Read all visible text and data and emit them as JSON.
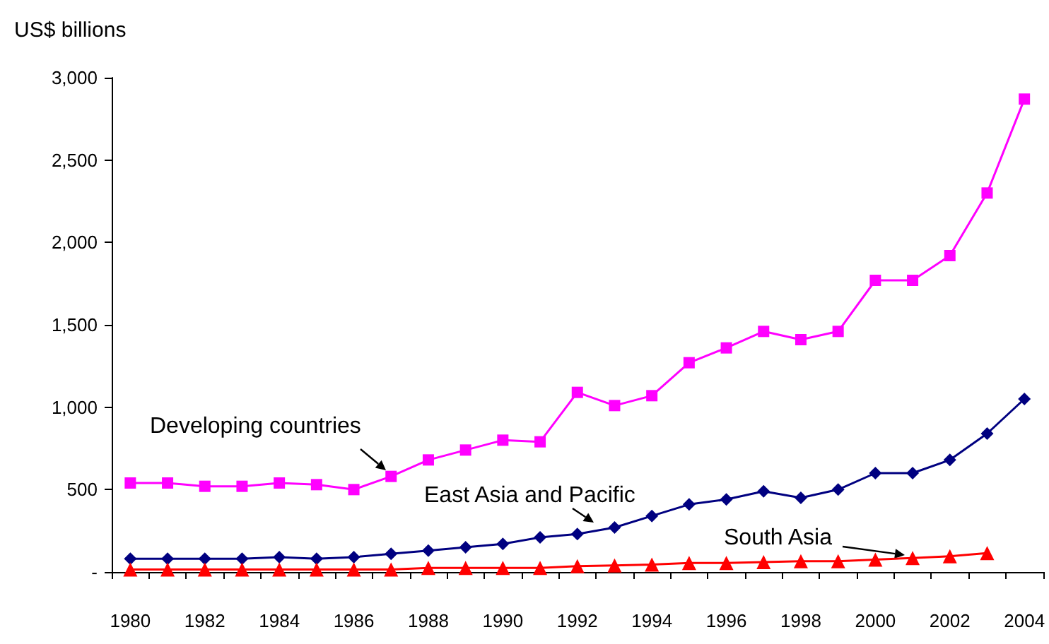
{
  "chart_data": {
    "type": "line",
    "ylabel": "US$ billions",
    "categories": [
      "1980",
      null,
      "1982",
      null,
      "1984",
      null,
      "1986",
      null,
      "1988",
      null,
      "1990",
      null,
      "1992",
      null,
      "1994",
      null,
      "1996",
      null,
      "1998",
      null,
      "2000",
      null,
      "2002",
      null,
      "2004"
    ],
    "series": [
      {
        "name": "Developing countries",
        "color": "#ff00ff",
        "marker": "square",
        "values": [
          540,
          540,
          520,
          520,
          540,
          530,
          500,
          580,
          680,
          740,
          800,
          790,
          1090,
          1010,
          1070,
          1270,
          1360,
          1460,
          1410,
          1460,
          1770,
          1770,
          1920,
          2300,
          2870
        ]
      },
      {
        "name": "East Asia and Pacific",
        "color": "#000080",
        "marker": "diamond",
        "values": [
          80,
          80,
          80,
          80,
          90,
          80,
          90,
          110,
          130,
          150,
          170,
          210,
          230,
          270,
          340,
          410,
          440,
          490,
          450,
          500,
          600,
          600,
          680,
          840,
          1050
        ]
      },
      {
        "name": "South Asia",
        "color": "#ff0000",
        "marker": "triangle",
        "values": [
          15,
          15,
          15,
          15,
          15,
          15,
          15,
          15,
          25,
          25,
          25,
          25,
          35,
          40,
          45,
          55,
          55,
          60,
          65,
          65,
          75,
          85,
          95,
          115,
          null
        ]
      }
    ],
    "ylim": [
      0,
      3000
    ],
    "yticks": [
      {
        "value": 0,
        "label": "-"
      },
      {
        "value": 500,
        "label": "500"
      },
      {
        "value": 1000,
        "label": "1,000"
      },
      {
        "value": 1500,
        "label": "1,500"
      },
      {
        "value": 2000,
        "label": "2,000"
      },
      {
        "value": 2500,
        "label": "2,500"
      },
      {
        "value": 3000,
        "label": "3,000"
      }
    ],
    "grid": false,
    "legend": false
  }
}
